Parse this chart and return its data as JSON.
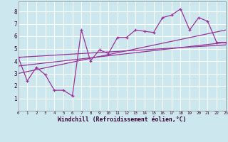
{
  "xlabel": "Windchill (Refroidissement éolien,°C)",
  "xlim": [
    0,
    23
  ],
  "ylim": [
    0,
    8.8
  ],
  "xticks": [
    0,
    1,
    2,
    3,
    4,
    5,
    6,
    7,
    8,
    9,
    10,
    11,
    12,
    13,
    14,
    15,
    16,
    17,
    18,
    19,
    20,
    21,
    22,
    23
  ],
  "yticks": [
    1,
    2,
    3,
    4,
    5,
    6,
    7,
    8
  ],
  "bg_color": "#cce8ee",
  "line_color": "#993399",
  "grid_color": "#ffffff",
  "series1_x": [
    0,
    1,
    2,
    3,
    4,
    5,
    6,
    7,
    8,
    9,
    10,
    11,
    12,
    13,
    14,
    15,
    16,
    17,
    18,
    19,
    20,
    21,
    22,
    23
  ],
  "series1_y": [
    4.3,
    2.4,
    3.5,
    2.9,
    1.65,
    1.65,
    1.2,
    6.5,
    4.0,
    4.9,
    4.6,
    5.9,
    5.9,
    6.5,
    6.4,
    6.3,
    7.5,
    7.7,
    8.2,
    6.5,
    7.5,
    7.2,
    5.5,
    5.5
  ],
  "series2_x": [
    0,
    23
  ],
  "series2_y": [
    3.6,
    5.5
  ],
  "series3_x": [
    0,
    23
  ],
  "series3_y": [
    4.3,
    5.3
  ],
  "series4_x": [
    0,
    23
  ],
  "series4_y": [
    3.0,
    6.5
  ]
}
